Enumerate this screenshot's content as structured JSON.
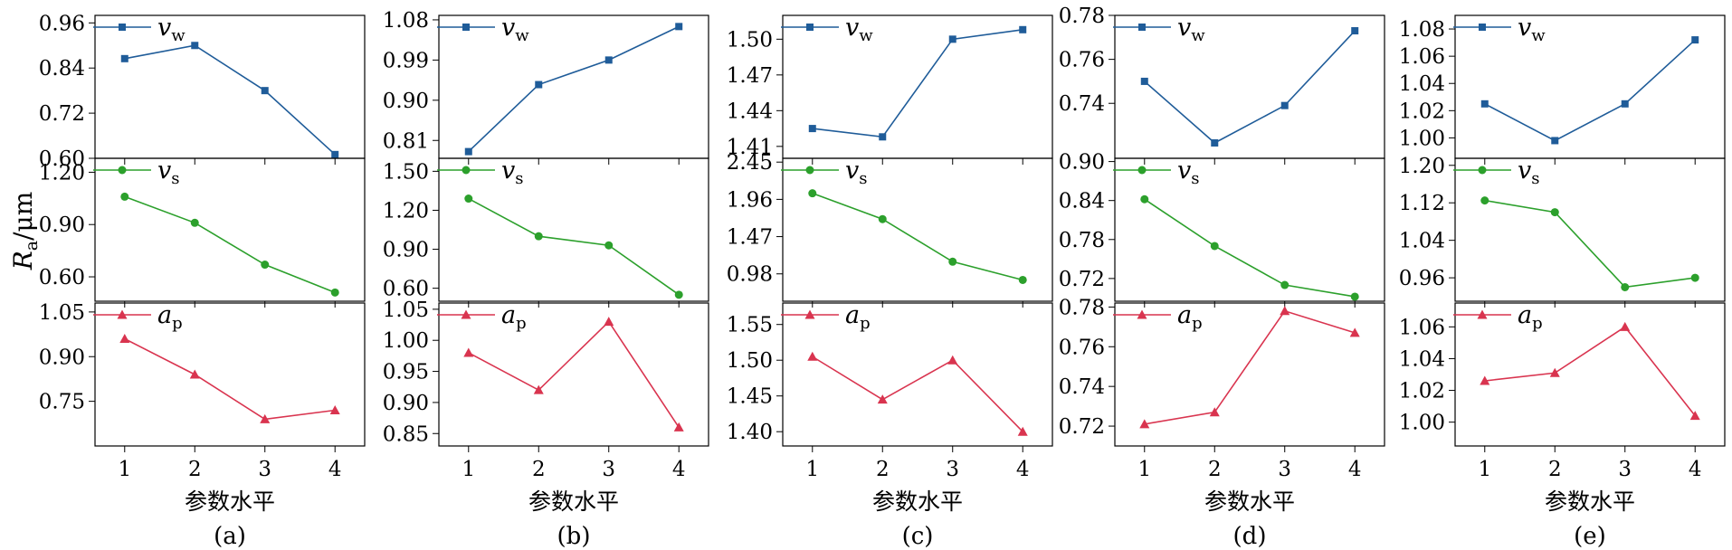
{
  "chart_data": [
    {
      "panel": "(a)",
      "type": "line",
      "xlabel": "参数水平",
      "x": [
        1,
        2,
        3,
        4
      ],
      "subplots": [
        {
          "series": {
            "name_main": "v",
            "name_sub": "w",
            "color": "#1f5c99",
            "marker": "square",
            "values": [
              0.865,
              0.9,
              0.78,
              0.61
            ]
          },
          "ylim": [
            0.6,
            0.98
          ],
          "yticks": [
            "0.60",
            "0.72",
            "0.84",
            "0.96"
          ],
          "ytick_values": [
            0.6,
            0.72,
            0.84,
            0.96
          ]
        },
        {
          "series": {
            "name_main": "v",
            "name_sub": "s",
            "color": "#2ca02c",
            "marker": "circle",
            "values": [
              1.06,
              0.91,
              0.67,
              0.51
            ]
          },
          "ylim": [
            0.46,
            1.28
          ],
          "yticks": [
            "0.60",
            "0.90",
            "1.20"
          ],
          "ytick_values": [
            0.6,
            0.9,
            1.2
          ]
        },
        {
          "series": {
            "name_main": "a",
            "name_sub": "p",
            "color": "#d9344f",
            "marker": "triangle",
            "values": [
              0.96,
              0.84,
              0.69,
              0.72
            ]
          },
          "ylim": [
            0.6,
            1.08
          ],
          "yticks": [
            "0.75",
            "0.90",
            "1.05"
          ],
          "ytick_values": [
            0.75,
            0.9,
            1.05
          ]
        }
      ]
    },
    {
      "panel": "(b)",
      "type": "line",
      "xlabel": "参数水平",
      "x": [
        1,
        2,
        3,
        4
      ],
      "subplots": [
        {
          "series": {
            "name_main": "v",
            "name_sub": "w",
            "color": "#1f5c99",
            "marker": "square",
            "values": [
              0.785,
              0.935,
              0.99,
              1.065
            ]
          },
          "ylim": [
            0.77,
            1.09
          ],
          "yticks": [
            "0.81",
            "0.90",
            "0.99",
            "1.08"
          ],
          "ytick_values": [
            0.81,
            0.9,
            0.99,
            1.08
          ]
        },
        {
          "series": {
            "name_main": "v",
            "name_sub": "s",
            "color": "#2ca02c",
            "marker": "circle",
            "values": [
              1.29,
              1.0,
              0.93,
              0.55
            ]
          },
          "ylim": [
            0.5,
            1.6
          ],
          "yticks": [
            "0.60",
            "0.90",
            "1.20",
            "1.50"
          ],
          "ytick_values": [
            0.6,
            0.9,
            1.2,
            1.5
          ]
        },
        {
          "series": {
            "name_main": "a",
            "name_sub": "p",
            "color": "#d9344f",
            "marker": "triangle",
            "values": [
              0.98,
              0.92,
              1.03,
              0.86
            ]
          },
          "ylim": [
            0.83,
            1.06
          ],
          "yticks": [
            "0.85",
            "0.90",
            "0.95",
            "1.00",
            "1.05"
          ],
          "ytick_values": [
            0.85,
            0.9,
            0.95,
            1.0,
            1.05
          ]
        }
      ]
    },
    {
      "panel": "(c)",
      "type": "line",
      "xlabel": "参数水平",
      "x": [
        1,
        2,
        3,
        4
      ],
      "subplots": [
        {
          "series": {
            "name_main": "v",
            "name_sub": "w",
            "color": "#1f5c99",
            "marker": "square",
            "values": [
              1.425,
              1.418,
              1.5,
              1.508
            ]
          },
          "ylim": [
            1.4,
            1.52
          ],
          "yticks": [
            "1.41",
            "1.44",
            "1.47",
            "1.50"
          ],
          "ytick_values": [
            1.41,
            1.44,
            1.47,
            1.5
          ]
        },
        {
          "series": {
            "name_main": "v",
            "name_sub": "s",
            "color": "#2ca02c",
            "marker": "circle",
            "values": [
              2.04,
              1.7,
              1.14,
              0.9
            ]
          },
          "ylim": [
            0.62,
            2.5
          ],
          "yticks": [
            "0.98",
            "1.47",
            "1.96",
            "2.45"
          ],
          "ytick_values": [
            0.98,
            1.47,
            1.96,
            2.45
          ]
        },
        {
          "series": {
            "name_main": "a",
            "name_sub": "p",
            "color": "#d9344f",
            "marker": "triangle",
            "values": [
              1.505,
              1.445,
              1.5,
              1.4
            ]
          },
          "ylim": [
            1.38,
            1.58
          ],
          "yticks": [
            "1.40",
            "1.45",
            "1.50",
            "1.55"
          ],
          "ytick_values": [
            1.4,
            1.45,
            1.5,
            1.55
          ]
        }
      ]
    },
    {
      "panel": "(d)",
      "type": "line",
      "xlabel": "参数水平",
      "x": [
        1,
        2,
        3,
        4
      ],
      "subplots": [
        {
          "series": {
            "name_main": "v",
            "name_sub": "w",
            "color": "#1f5c99",
            "marker": "square",
            "values": [
              0.75,
              0.722,
              0.739,
              0.773
            ]
          },
          "ylim": [
            0.715,
            0.78
          ],
          "yticks": [
            "0.74",
            "0.76",
            "0.78"
          ],
          "ytick_values": [
            0.74,
            0.76,
            0.78
          ]
        },
        {
          "series": {
            "name_main": "v",
            "name_sub": "s",
            "color": "#2ca02c",
            "marker": "circle",
            "values": [
              0.842,
              0.77,
              0.71,
              0.692
            ]
          },
          "ylim": [
            0.685,
            0.905
          ],
          "yticks": [
            "0.72",
            "0.78",
            "0.84",
            "0.90"
          ],
          "ytick_values": [
            0.72,
            0.78,
            0.84,
            0.9
          ]
        },
        {
          "series": {
            "name_main": "a",
            "name_sub": "p",
            "color": "#d9344f",
            "marker": "triangle",
            "values": [
              0.721,
              0.727,
              0.778,
              0.767
            ]
          },
          "ylim": [
            0.71,
            0.782
          ],
          "yticks": [
            "0.72",
            "0.74",
            "0.76",
            "0.78"
          ],
          "ytick_values": [
            0.72,
            0.74,
            0.76,
            0.78
          ]
        }
      ]
    },
    {
      "panel": "(e)",
      "type": "line",
      "xlabel": "参数水平",
      "x": [
        1,
        2,
        3,
        4
      ],
      "subplots": [
        {
          "series": {
            "name_main": "v",
            "name_sub": "w",
            "color": "#1f5c99",
            "marker": "square",
            "values": [
              1.025,
              0.998,
              1.025,
              1.072
            ]
          },
          "ylim": [
            0.985,
            1.09
          ],
          "yticks": [
            "1.00",
            "1.02",
            "1.04",
            "1.06",
            "1.08"
          ],
          "ytick_values": [
            1.0,
            1.02,
            1.04,
            1.06,
            1.08
          ]
        },
        {
          "series": {
            "name_main": "v",
            "name_sub": "s",
            "color": "#2ca02c",
            "marker": "circle",
            "values": [
              1.125,
              1.1,
              0.94,
              0.96
            ]
          },
          "ylim": [
            0.91,
            1.215
          ],
          "yticks": [
            "0.96",
            "1.04",
            "1.12",
            "1.20"
          ],
          "ytick_values": [
            0.96,
            1.04,
            1.12,
            1.2
          ]
        },
        {
          "series": {
            "name_main": "a",
            "name_sub": "p",
            "color": "#d9344f",
            "marker": "triangle",
            "values": [
              1.026,
              1.031,
              1.06,
              1.004
            ]
          },
          "ylim": [
            0.985,
            1.075
          ],
          "yticks": [
            "1.00",
            "1.02",
            "1.04",
            "1.06"
          ],
          "ytick_values": [
            1.0,
            1.02,
            1.04,
            1.06
          ]
        }
      ]
    }
  ],
  "shared": {
    "ylabel_main": "R",
    "ylabel_sub": "a",
    "ylabel_unit": "/μm",
    "xticks": [
      "1",
      "2",
      "3",
      "4"
    ]
  }
}
